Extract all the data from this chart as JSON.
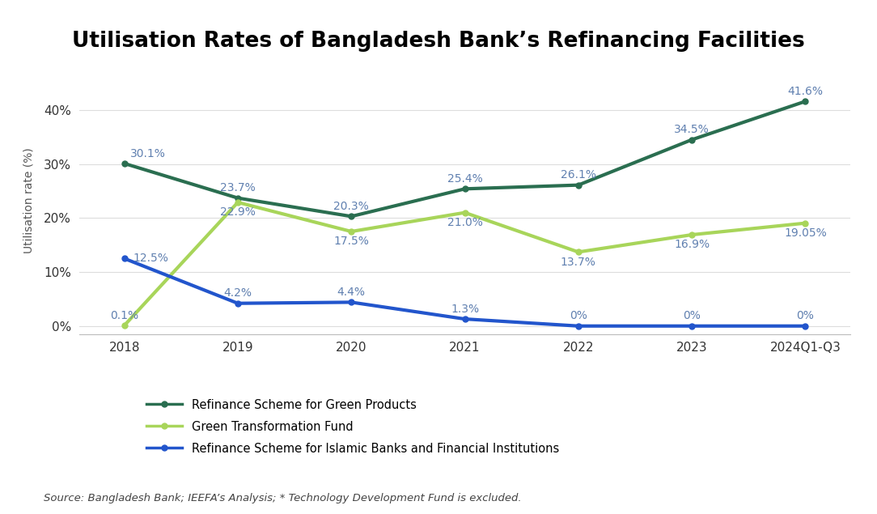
{
  "title": "Utilisation Rates of Bangladesh Bank’s Refinancing Facilities",
  "ylabel": "Utilisation rate (%)",
  "source_text": "Source: Bangladesh Bank; IEEFA’s Analysis; * Technology Development Fund is excluded.",
  "x_labels": [
    "2018",
    "2019",
    "2020",
    "2021",
    "2022",
    "2023",
    "2024Q1-Q3"
  ],
  "series": [
    {
      "name": "Refinance Scheme for Green Products",
      "values": [
        30.1,
        23.7,
        20.3,
        25.4,
        26.1,
        34.5,
        41.6
      ],
      "color": "#2a6e50",
      "linewidth": 3.0,
      "marker": "o",
      "markersize": 5
    },
    {
      "name": "Green Transformation Fund",
      "values": [
        0.1,
        22.9,
        17.5,
        21.0,
        13.7,
        16.9,
        19.05
      ],
      "color": "#a8d55a",
      "linewidth": 3.0,
      "marker": "o",
      "markersize": 5
    },
    {
      "name": "Refinance Scheme for Islamic Banks and Financial Institutions",
      "values": [
        12.5,
        4.2,
        4.4,
        1.3,
        0.0,
        0.0,
        0.0
      ],
      "color": "#2255cc",
      "linewidth": 3.0,
      "marker": "o",
      "markersize": 5
    }
  ],
  "annotations": [
    {
      "series": 0,
      "xi": 0,
      "yi": 30.1,
      "label": "30.1%",
      "ha": "left",
      "va": "bottom",
      "xoff": 0.05,
      "yoff": 0.8
    },
    {
      "series": 0,
      "xi": 1,
      "yi": 23.7,
      "label": "23.7%",
      "ha": "center",
      "va": "bottom",
      "xoff": 0.0,
      "yoff": 0.8
    },
    {
      "series": 0,
      "xi": 2,
      "yi": 20.3,
      "label": "20.3%",
      "ha": "center",
      "va": "bottom",
      "xoff": 0.0,
      "yoff": 0.8
    },
    {
      "series": 0,
      "xi": 3,
      "yi": 25.4,
      "label": "25.4%",
      "ha": "center",
      "va": "bottom",
      "xoff": 0.0,
      "yoff": 0.8
    },
    {
      "series": 0,
      "xi": 4,
      "yi": 26.1,
      "label": "26.1%",
      "ha": "center",
      "va": "bottom",
      "xoff": 0.0,
      "yoff": 0.8
    },
    {
      "series": 0,
      "xi": 5,
      "yi": 34.5,
      "label": "34.5%",
      "ha": "center",
      "va": "bottom",
      "xoff": 0.0,
      "yoff": 0.8
    },
    {
      "series": 0,
      "xi": 6,
      "yi": 41.6,
      "label": "41.6%",
      "ha": "center",
      "va": "bottom",
      "xoff": 0.0,
      "yoff": 0.8
    },
    {
      "series": 1,
      "xi": 0,
      "yi": 0.1,
      "label": "0.1%",
      "ha": "center",
      "va": "bottom",
      "xoff": 0.0,
      "yoff": 0.8
    },
    {
      "series": 1,
      "xi": 1,
      "yi": 22.9,
      "label": "22.9%",
      "ha": "center",
      "va": "top",
      "xoff": 0.0,
      "yoff": -0.8
    },
    {
      "series": 1,
      "xi": 2,
      "yi": 17.5,
      "label": "17.5%",
      "ha": "center",
      "va": "top",
      "xoff": 0.0,
      "yoff": -0.8
    },
    {
      "series": 1,
      "xi": 3,
      "yi": 21.0,
      "label": "21.0%",
      "ha": "center",
      "va": "top",
      "xoff": 0.0,
      "yoff": -0.8
    },
    {
      "series": 1,
      "xi": 4,
      "yi": 13.7,
      "label": "13.7%",
      "ha": "center",
      "va": "top",
      "xoff": 0.0,
      "yoff": -0.8
    },
    {
      "series": 1,
      "xi": 5,
      "yi": 16.9,
      "label": "16.9%",
      "ha": "center",
      "va": "top",
      "xoff": 0.0,
      "yoff": -0.8
    },
    {
      "series": 1,
      "xi": 6,
      "yi": 19.05,
      "label": "19.05%",
      "ha": "center",
      "va": "top",
      "xoff": 0.0,
      "yoff": -0.8
    },
    {
      "series": 2,
      "xi": 0,
      "yi": 12.5,
      "label": "12.5%",
      "ha": "left",
      "va": "center",
      "xoff": 0.08,
      "yoff": 0.0
    },
    {
      "series": 2,
      "xi": 1,
      "yi": 4.2,
      "label": "4.2%",
      "ha": "center",
      "va": "bottom",
      "xoff": 0.0,
      "yoff": 0.8
    },
    {
      "series": 2,
      "xi": 2,
      "yi": 4.4,
      "label": "4.4%",
      "ha": "center",
      "va": "bottom",
      "xoff": 0.0,
      "yoff": 0.8
    },
    {
      "series": 2,
      "xi": 3,
      "yi": 1.3,
      "label": "1.3%",
      "ha": "center",
      "va": "bottom",
      "xoff": 0.0,
      "yoff": 0.8
    },
    {
      "series": 2,
      "xi": 4,
      "yi": 0.0,
      "label": "0%",
      "ha": "center",
      "va": "bottom",
      "xoff": 0.0,
      "yoff": 0.8
    },
    {
      "series": 2,
      "xi": 5,
      "yi": 0.0,
      "label": "0%",
      "ha": "center",
      "va": "bottom",
      "xoff": 0.0,
      "yoff": 0.8
    },
    {
      "series": 2,
      "xi": 6,
      "yi": 0.0,
      "label": "0%",
      "ha": "center",
      "va": "bottom",
      "xoff": 0.0,
      "yoff": 0.8
    }
  ],
  "annotation_color": "#6080b0",
  "ylim": [
    -1.5,
    48
  ],
  "yticks": [
    0,
    10,
    20,
    30,
    40
  ],
  "ytick_labels": [
    "0%",
    "10%",
    "20%",
    "30%",
    "40%"
  ],
  "background_color": "#ffffff",
  "title_fontsize": 19,
  "axis_label_fontsize": 10,
  "tick_fontsize": 11,
  "annotation_fontsize": 10,
  "legend_fontsize": 10.5,
  "source_fontsize": 9.5
}
